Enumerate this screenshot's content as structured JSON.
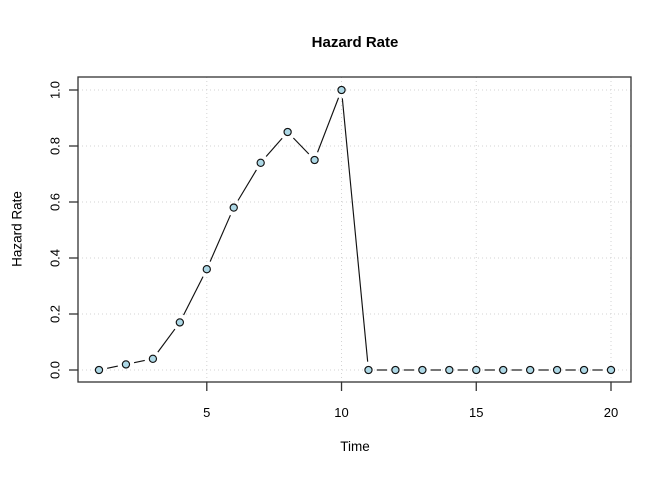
{
  "chart_data": {
    "type": "line",
    "title": "Hazard Rate",
    "xlabel": "Time",
    "ylabel": "Hazard Rate",
    "x": [
      1,
      2,
      3,
      4,
      5,
      6,
      7,
      8,
      9,
      10,
      11,
      12,
      13,
      14,
      15,
      16,
      17,
      18,
      19,
      20
    ],
    "y": [
      0.0,
      0.02,
      0.04,
      0.17,
      0.36,
      0.58,
      0.74,
      0.85,
      0.75,
      1.0,
      0.0,
      0.0,
      0.0,
      0.0,
      0.0,
      0.0,
      0.0,
      0.0,
      0.0,
      0.0
    ],
    "x_tick_labels": [
      "5",
      "10",
      "15",
      "20"
    ],
    "x_tick_values": [
      5,
      10,
      15,
      20
    ],
    "y_tick_labels": [
      "0.0",
      "0.2",
      "0.4",
      "0.6",
      "0.8",
      "1.0"
    ],
    "y_tick_values": [
      0.0,
      0.2,
      0.4,
      0.6,
      0.8,
      1.0
    ],
    "xlim": [
      1,
      20
    ],
    "ylim": [
      0.0,
      1.0
    ],
    "grid": true,
    "grid_style": "dotted",
    "line_style": "points-and-segments",
    "marker": "circle",
    "legend_position": "none"
  },
  "colors": {
    "background": "#FFFFFF",
    "point_fill": "#ADD8E6",
    "point_border": "#111111",
    "line": "#111111",
    "grid": "#D3D3D3",
    "axis": "#333333",
    "text": "#000000"
  }
}
